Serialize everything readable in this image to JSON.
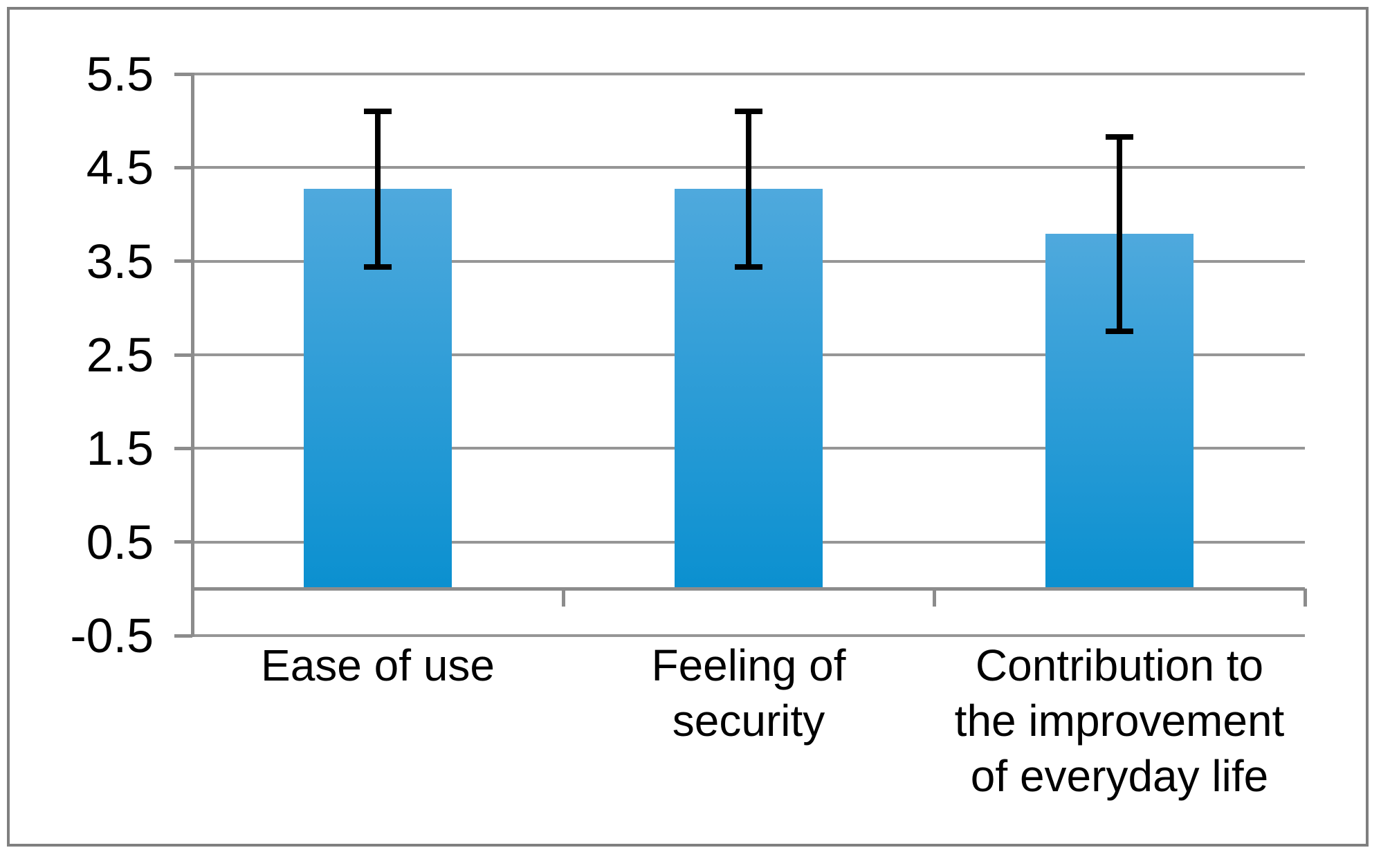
{
  "figure": {
    "background": "#FFFFFF",
    "border_color": "#7F7F7F"
  },
  "chart_data": {
    "type": "bar",
    "title": "",
    "xlabel": "",
    "ylabel": "",
    "categories": [
      "Ease of use",
      "Feeling of security",
      "Contribution to the improvement of everyday life"
    ],
    "category_display": [
      "Ease of use",
      "Feeling of\nsecurity",
      "Contribution to\nthe improvement\nof everyday life"
    ],
    "values": [
      4.27,
      4.27,
      3.79
    ],
    "error_bars": [
      0.83,
      0.83,
      1.04
    ],
    "error_bar_ranges": [
      [
        3.44,
        5.1
      ],
      [
        3.44,
        5.1
      ],
      [
        2.75,
        4.83
      ]
    ],
    "y_ticks": [
      5.5,
      4.5,
      3.5,
      2.5,
      1.5,
      0.5,
      -0.5
    ],
    "y_tick_labels": [
      "5.5",
      "4.5",
      "3.5",
      "2.5",
      "1.5",
      "0.5",
      "-0.5"
    ],
    "ylim": [
      -0.5,
      5.5
    ],
    "grid": true,
    "legend": "none",
    "bar_baseline": 0,
    "colors": {
      "bar_gradient_top": "#4FA9DD",
      "bar_gradient_bottom": "#0B90D0",
      "gridline": "#969696",
      "axis": "#8C8C8C",
      "error_bar": "#000000",
      "tick_label": "#000000"
    }
  }
}
